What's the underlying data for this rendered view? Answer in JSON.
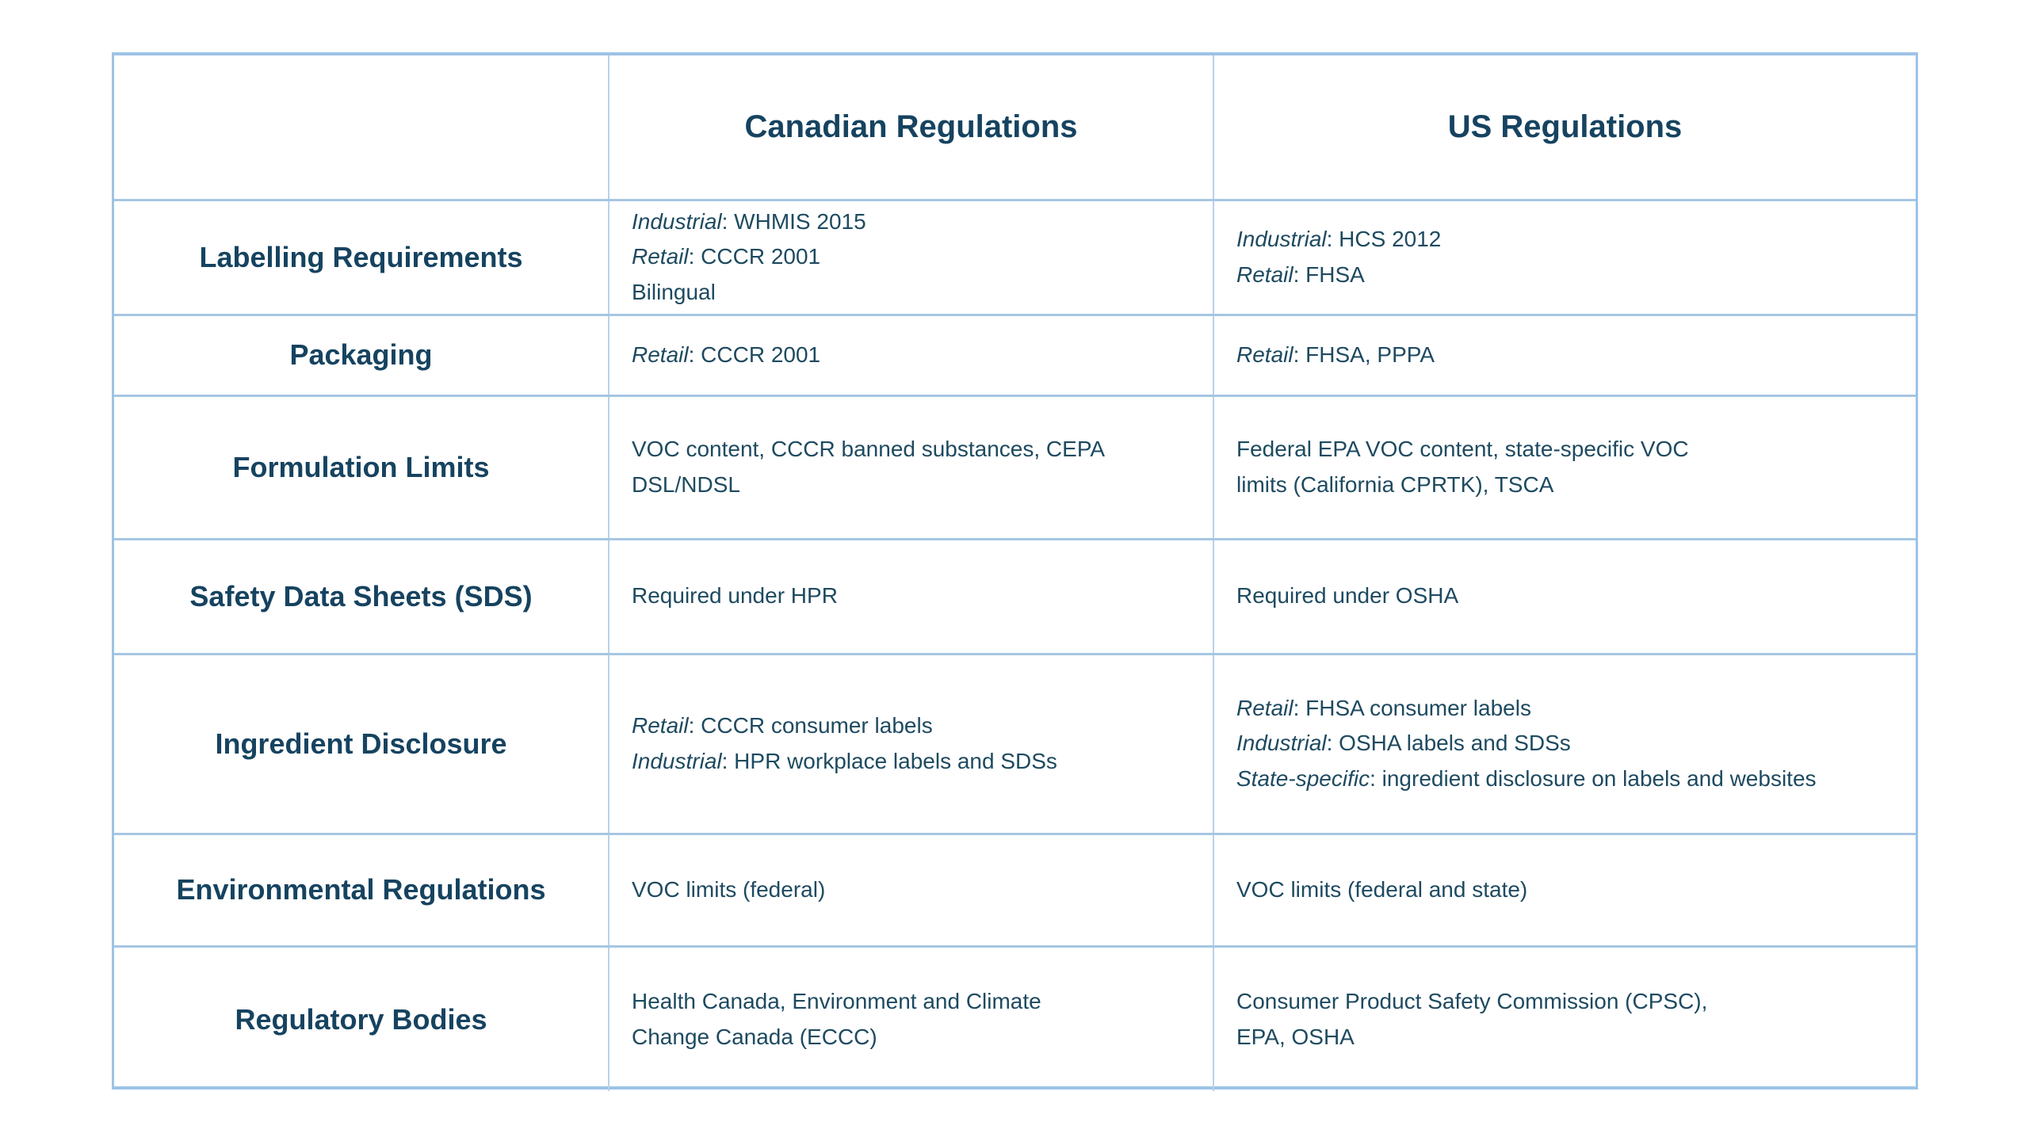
{
  "colors": {
    "background": "#ffffff",
    "heading_text": "#164360",
    "body_text": "#1e4a60",
    "border_outer": "#9dc3e6",
    "border_row_divider": "#a6c6e2",
    "border_column_divider": "#b9d1e9"
  },
  "table": {
    "header": {
      "col1": "",
      "col2": "Canadian Regulations",
      "col3": "US Regulations"
    },
    "rows": [
      {
        "label": "Labelling Requirements",
        "canada": [
          {
            "em": "Industrial",
            "text": ": WHMIS 2015"
          },
          {
            "em": "Retail",
            "text": ": CCCR 2001"
          },
          {
            "em": "",
            "text": "Bilingual"
          }
        ],
        "us": [
          {
            "em": "Industrial",
            "text": ": HCS 2012"
          },
          {
            "em": "Retail",
            "text": ": FHSA"
          }
        ]
      },
      {
        "label": "Packaging",
        "canada": [
          {
            "em": "Retail",
            "text": ": CCCR 2001"
          }
        ],
        "us": [
          {
            "em": "Retail",
            "text": ": FHSA, PPPA"
          }
        ]
      },
      {
        "label": "Formulation Limits",
        "canada": [
          {
            "em": "",
            "text": "VOC content, CCCR banned substances, CEPA"
          },
          {
            "em": "",
            "text": "DSL/NDSL"
          }
        ],
        "us": [
          {
            "em": "",
            "text": "Federal EPA VOC content, state-specific VOC"
          },
          {
            "em": "",
            "text": "limits (California CPRTK), TSCA"
          }
        ]
      },
      {
        "label": "Safety Data Sheets (SDS)",
        "canada": [
          {
            "em": "",
            "text": "Required under HPR"
          }
        ],
        "us": [
          {
            "em": "",
            "text": "Required under OSHA"
          }
        ]
      },
      {
        "label": "Ingredient Disclosure",
        "canada": [
          {
            "em": "Retail",
            "text": ": CCCR consumer labels"
          },
          {
            "em": "Industrial",
            "text": ": HPR workplace labels and SDSs"
          }
        ],
        "us": [
          {
            "em": "Retail",
            "text": ": FHSA consumer labels"
          },
          {
            "em": "Industrial",
            "text": ": OSHA labels and SDSs"
          },
          {
            "em": "State-specific",
            "text": ": ingredient disclosure on labels and websites"
          }
        ]
      },
      {
        "label": "Environmental Regulations",
        "canada": [
          {
            "em": "",
            "text": "VOC limits (federal)"
          }
        ],
        "us": [
          {
            "em": "",
            "text": "VOC limits (federal and state)"
          }
        ]
      },
      {
        "label": "Regulatory Bodies",
        "canada": [
          {
            "em": "",
            "text": "Health Canada, Environment and Climate"
          },
          {
            "em": "",
            "text": "Change Canada (ECCC)"
          }
        ],
        "us": [
          {
            "em": "",
            "text": "Consumer Product Safety Commission (CPSC),"
          },
          {
            "em": "",
            "text": "EPA, OSHA"
          }
        ]
      }
    ]
  }
}
